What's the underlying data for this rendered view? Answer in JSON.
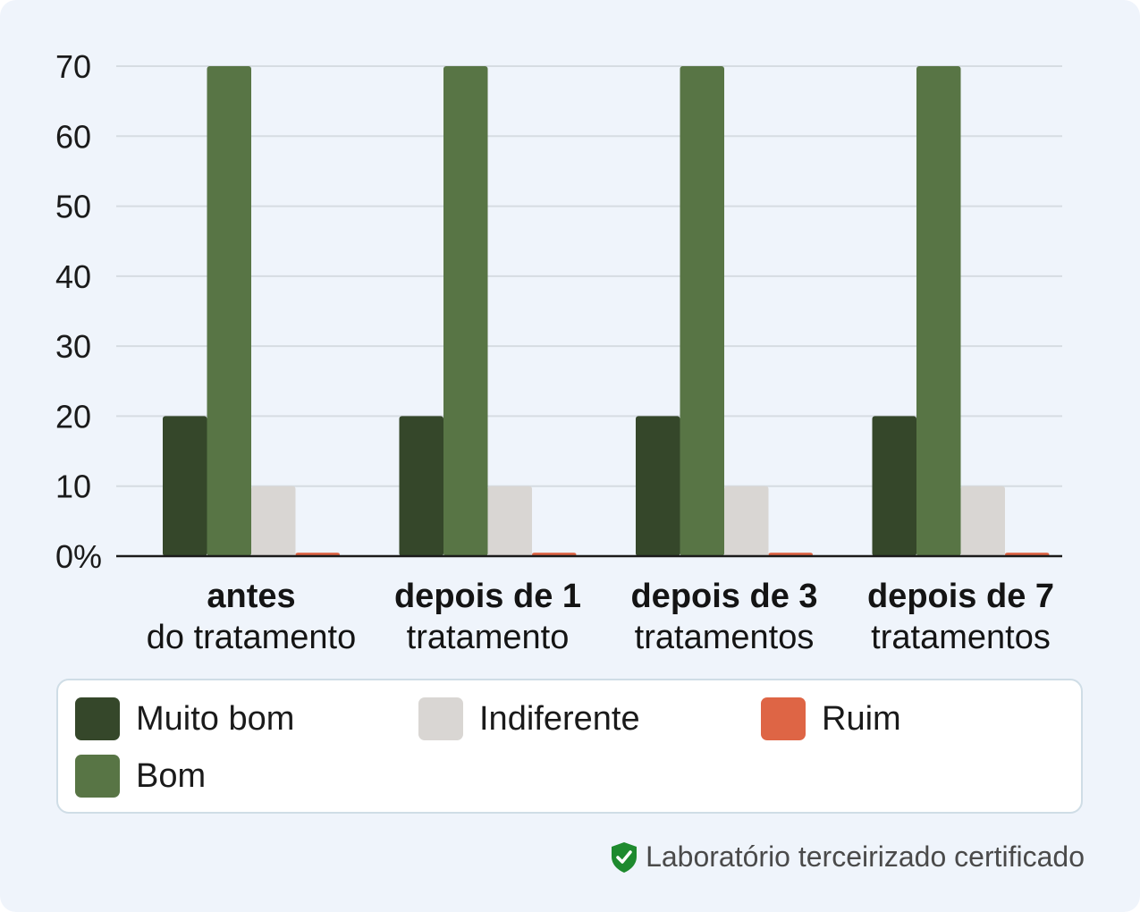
{
  "chart_data": {
    "type": "bar",
    "categories": [
      {
        "bold": "antes",
        "normal": "do tratamento"
      },
      {
        "bold": "depois de 1",
        "normal": "tratamento"
      },
      {
        "bold": "depois de 3",
        "normal": "tratamentos"
      },
      {
        "bold": "depois de 7",
        "normal": "tratamentos"
      }
    ],
    "series": [
      {
        "name": "Muito bom",
        "color": "#35472a",
        "values": [
          20,
          20,
          20,
          20
        ]
      },
      {
        "name": "Bom",
        "color": "#587545",
        "values": [
          70,
          70,
          70,
          70
        ]
      },
      {
        "name": "Indiferente",
        "color": "#d9d6d3",
        "values": [
          10,
          10,
          10,
          10
        ]
      },
      {
        "name": "Ruim",
        "color": "#de6545",
        "values": [
          0.5,
          0.5,
          0.5,
          0.5
        ]
      }
    ],
    "yticks": [
      "0%",
      "10",
      "20",
      "30",
      "40",
      "50",
      "60",
      "70"
    ],
    "ylim": [
      0,
      70
    ],
    "grid": true,
    "legend_position": "bottom"
  },
  "footer": {
    "text": "Laboratório terceirizado certificado",
    "icon": "shield-check-icon",
    "icon_color": "#1e8a2e"
  }
}
